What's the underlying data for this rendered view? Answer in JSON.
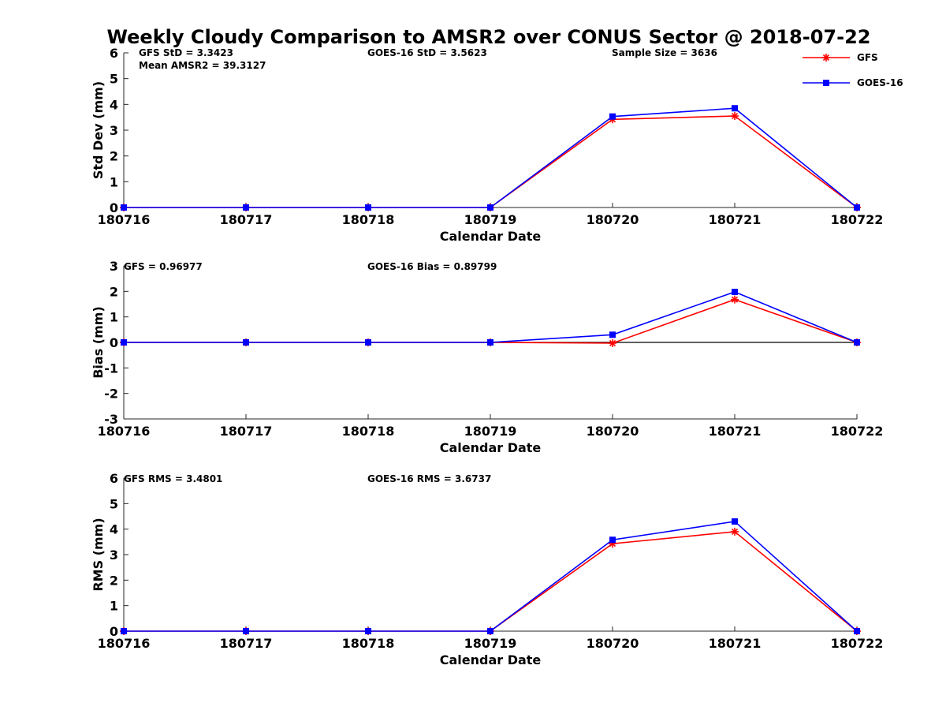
{
  "title": "Weekly Cloudy Comparison to AMSR2 over CONUS Sector @ 2018-07-22",
  "legend": {
    "placement": "top-right",
    "entries": [
      {
        "name": "GFS",
        "color": "#ff0000",
        "marker": "asterisk"
      },
      {
        "name": "GOES-16",
        "color": "#0000ff",
        "marker": "square"
      }
    ]
  },
  "chart_data": [
    {
      "type": "line",
      "x": [
        "180716",
        "180717",
        "180718",
        "180719",
        "180720",
        "180721",
        "180722"
      ],
      "xlabel": "Calendar Date",
      "ylabel": "Std Dev (mm)",
      "ylim": [
        0,
        6
      ],
      "yticks": [
        "0",
        "1",
        "2",
        "3",
        "4",
        "5",
        "6"
      ],
      "zero_line": false,
      "annotations": [
        "GFS StD = 3.3423",
        "Mean AMSR2 = 39.3127",
        "GOES-16 StD = 3.5623",
        "Sample Size = 3636"
      ],
      "series": [
        {
          "name": "GFS",
          "color": "#ff0000",
          "marker": "asterisk",
          "values": [
            0,
            0,
            0,
            0,
            3.42,
            3.55,
            0
          ]
        },
        {
          "name": "GOES-16",
          "color": "#0000ff",
          "marker": "square",
          "values": [
            0,
            0,
            0,
            0,
            3.53,
            3.85,
            0
          ]
        }
      ]
    },
    {
      "type": "line",
      "x": [
        "180716",
        "180717",
        "180718",
        "180719",
        "180720",
        "180721",
        "180722"
      ],
      "xlabel": "Calendar Date",
      "ylabel": "Bias (mm)",
      "ylim": [
        -3,
        3
      ],
      "yticks": [
        "-3",
        "-2",
        "-1",
        "0",
        "1",
        "2",
        "3"
      ],
      "zero_line": true,
      "annotations": [
        "GFS = 0.96977",
        "GOES-16 Bias  = 0.89799"
      ],
      "series": [
        {
          "name": "GFS",
          "color": "#ff0000",
          "marker": "asterisk",
          "values": [
            0,
            0,
            0,
            0,
            -0.03,
            1.68,
            0
          ]
        },
        {
          "name": "GOES-16",
          "color": "#0000ff",
          "marker": "square",
          "values": [
            0,
            0,
            0,
            0,
            0.3,
            1.98,
            0
          ]
        }
      ]
    },
    {
      "type": "line",
      "x": [
        "180716",
        "180717",
        "180718",
        "180719",
        "180720",
        "180721",
        "180722"
      ],
      "xlabel": "Calendar Date",
      "ylabel": "RMS (mm)",
      "ylim": [
        0,
        6
      ],
      "yticks": [
        "0",
        "1",
        "2",
        "3",
        "4",
        "5",
        "6"
      ],
      "zero_line": false,
      "annotations": [
        "GFS RMS = 3.4801",
        "GOES-16 RMS = 3.6737"
      ],
      "series": [
        {
          "name": "GFS",
          "color": "#ff0000",
          "marker": "asterisk",
          "values": [
            0,
            0,
            0,
            0,
            3.43,
            3.9,
            0
          ]
        },
        {
          "name": "GOES-16",
          "color": "#0000ff",
          "marker": "square",
          "values": [
            0,
            0,
            0,
            0,
            3.58,
            4.3,
            0
          ]
        }
      ]
    }
  ]
}
